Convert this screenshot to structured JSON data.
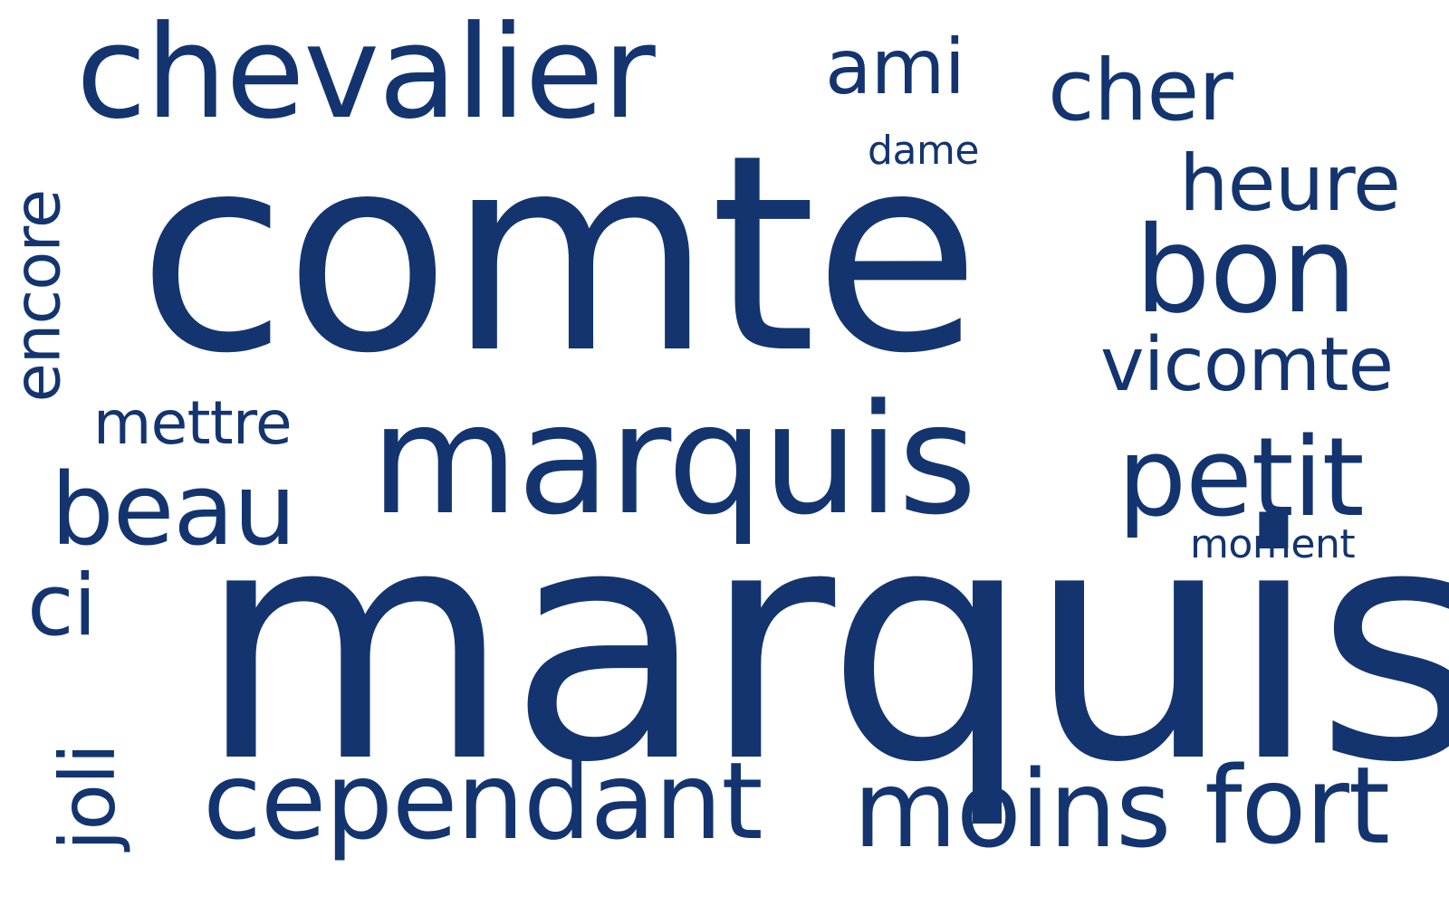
{
  "word_cloud": {
    "text_color": "#13346f",
    "background": "#ffffff",
    "words": {
      "comte": "comte",
      "marquise": "marquise",
      "marquis": "marquis",
      "chevalier": "chevalier",
      "ami": "ami",
      "cher": "cher",
      "dame": "dame",
      "heure": "heure",
      "bon": "bon",
      "vicomte": "vicomte",
      "encore": "encore",
      "mettre": "mettre",
      "beau": "beau",
      "petit": "petit",
      "moment": "moment",
      "ci": "ci",
      "joli": "joli",
      "cependant": "cependant",
      "moins": "moins",
      "fort": "fort"
    }
  }
}
